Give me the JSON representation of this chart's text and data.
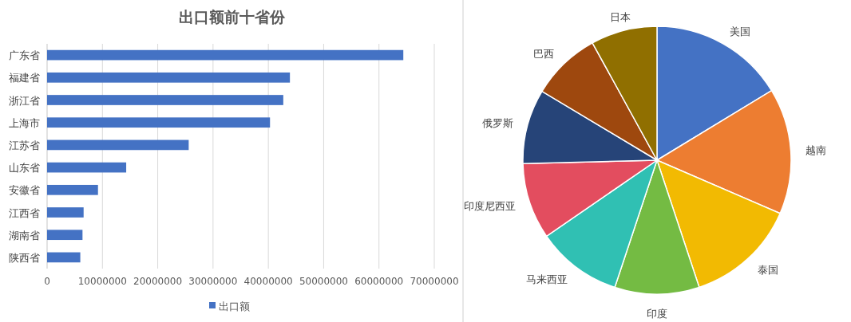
{
  "chart_data": [
    {
      "type": "bar",
      "orientation": "horizontal",
      "title": "出口额前十省份",
      "categories": [
        "广东省",
        "福建省",
        "浙江省",
        "上海市",
        "江苏省",
        "山东省",
        "安徽省",
        "江西省",
        "湖南省",
        "陕西省"
      ],
      "series": [
        {
          "name": "出口额",
          "color": "#4472c4",
          "values": [
            64400000,
            43900000,
            42700000,
            40300000,
            25600000,
            14300000,
            9200000,
            6600000,
            6400000,
            6000000
          ]
        }
      ],
      "xlim": [
        0,
        70000000
      ],
      "xticks": [
        0,
        10000000,
        20000000,
        30000000,
        40000000,
        50000000,
        60000000,
        70000000
      ],
      "grid": "x",
      "legend": "bottom"
    },
    {
      "type": "pie",
      "categories": [
        "美国",
        "越南",
        "泰国",
        "印度",
        "马来西亚",
        "印度尼西亚",
        "俄罗斯",
        "巴西",
        "日本"
      ],
      "values": [
        16.3,
        15.2,
        13.4,
        10.2,
        10.3,
        9.2,
        9.0,
        8.4,
        8.0
      ],
      "colors": [
        "#4472c4",
        "#ed7d31",
        "#f2ba02",
        "#74bb43",
        "#30c0b3",
        "#e34d5f",
        "#264478",
        "#9e480e",
        "#906f00"
      ]
    }
  ]
}
